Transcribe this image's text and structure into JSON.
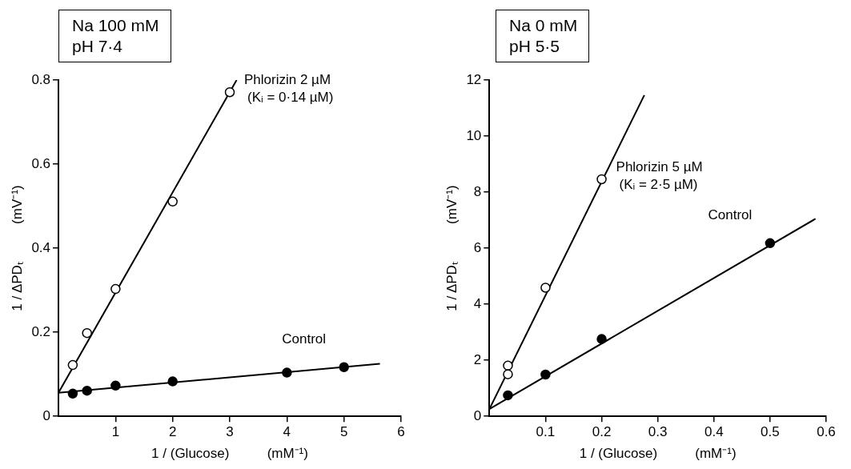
{
  "chart_data": [
    {
      "type": "scatter",
      "title": "Na  100 mM",
      "subtitle": "pH  7·4",
      "xlabel": "1 / (Glucose)          (mM⁻¹)",
      "ylabel": "1 / ΔPDₜ          (mV⁻¹)",
      "xlim": [
        0,
        6
      ],
      "xticks": [
        1,
        2,
        3,
        4,
        5,
        6
      ],
      "ylim": [
        0,
        0.8
      ],
      "yticks": [
        0,
        0.2,
        0.4,
        0.6,
        0.8
      ],
      "grid": false,
      "legend": false,
      "annotations": [
        {
          "text": "(Kᵢ = 0·14 µM)",
          "x": 3,
          "y": 0.771
        }
      ],
      "series": [
        {
          "name": "Phlorizin 2 µM",
          "type": "scatter",
          "marker": "circle",
          "color": "#ffffff",
          "x": [
            0.25,
            0.5,
            1,
            2,
            3
          ],
          "values": [
            0.122,
            0.198,
            0.303,
            0.511,
            0.771
          ]
        },
        {
          "name": "Control",
          "type": "scatter",
          "marker": "circle",
          "color": "#000000",
          "x": [
            0.25,
            0.5,
            1,
            2,
            4,
            5
          ],
          "values": [
            0.054,
            0.061,
            0.073,
            0.083,
            0.104,
            0.117
          ]
        },
        {
          "type": "line",
          "marker": "none",
          "color": "#000000",
          "x": [
            0,
            3.12
          ],
          "values": [
            0.056,
            0.8
          ]
        },
        {
          "type": "line",
          "marker": "none",
          "color": "#000000",
          "x": [
            0,
            5.63
          ],
          "values": [
            0.056,
            0.125
          ]
        }
      ]
    },
    {
      "type": "scatter",
      "title": "Na  0 mM",
      "subtitle": "pH  5·5",
      "xlabel": "1 / (Glucose)          (mM⁻¹)",
      "ylabel": "1 / ΔPDₜ          (mV⁻¹)",
      "xlim": [
        0,
        0.6
      ],
      "xticks": [
        0.1,
        0.2,
        0.3,
        0.4,
        0.5,
        0.6
      ],
      "ylim": [
        0,
        12
      ],
      "yticks": [
        0,
        2,
        4,
        6,
        8,
        10,
        12
      ],
      "grid": false,
      "legend": false,
      "annotations": [
        {
          "text": "(Kᵢ = 2·5 µM)",
          "x": 0.2,
          "y": 8.46
        }
      ],
      "series": [
        {
          "name": "Phlorizin 5 µM",
          "type": "scatter",
          "marker": "circle",
          "color": "#ffffff",
          "x": [
            0.033,
            0.033,
            0.1,
            0.2
          ],
          "values": [
            1.81,
            1.5,
            4.59,
            8.46
          ]
        },
        {
          "name": "Control",
          "type": "scatter",
          "marker": "circle",
          "color": "#000000",
          "x": [
            0.033,
            0.1,
            0.2,
            0.5
          ],
          "values": [
            0.75,
            1.49,
            2.76,
            6.18
          ]
        },
        {
          "type": "line",
          "marker": "none",
          "color": "#000000",
          "x": [
            0,
            0.276
          ],
          "values": [
            0.26,
            11.46
          ]
        },
        {
          "type": "line",
          "marker": "none",
          "color": "#000000",
          "x": [
            0,
            0.581
          ],
          "values": [
            0.26,
            7.05
          ]
        }
      ]
    }
  ]
}
